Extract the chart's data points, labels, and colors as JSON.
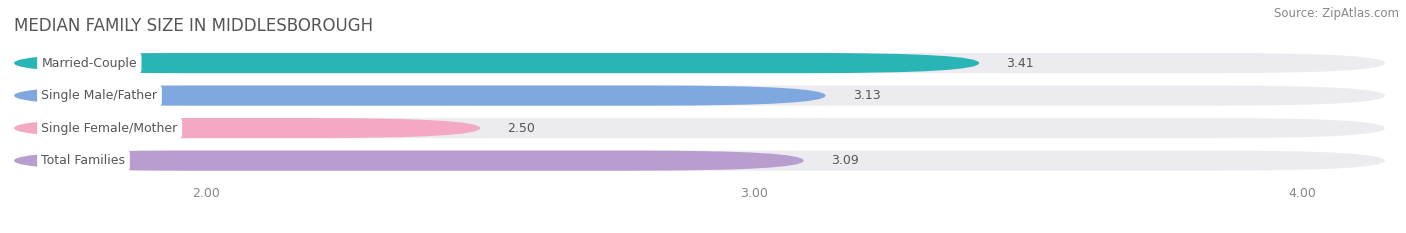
{
  "title": "MEDIAN FAMILY SIZE IN MIDDLESBOROUGH",
  "source": "Source: ZipAtlas.com",
  "categories": [
    "Married-Couple",
    "Single Male/Father",
    "Single Female/Mother",
    "Total Families"
  ],
  "values": [
    3.41,
    3.13,
    2.5,
    3.09
  ],
  "bar_colors": [
    "#29b5b5",
    "#80a8e0",
    "#f4a8c4",
    "#b89ece"
  ],
  "xmin": 1.65,
  "xmax": 4.15,
  "xticks": [
    2.0,
    3.0,
    4.0
  ],
  "bar_height": 0.62,
  "figsize": [
    14.06,
    2.33
  ],
  "dpi": 100,
  "background_color": "#ffffff",
  "bar_bg_color": "#ebebf0",
  "title_fontsize": 12,
  "label_fontsize": 9,
  "value_fontsize": 9,
  "source_fontsize": 8.5,
  "title_color": "#555555",
  "source_color": "#888888",
  "label_text_color": "#555555",
  "value_text_color": "#555555",
  "tick_color": "#888888"
}
